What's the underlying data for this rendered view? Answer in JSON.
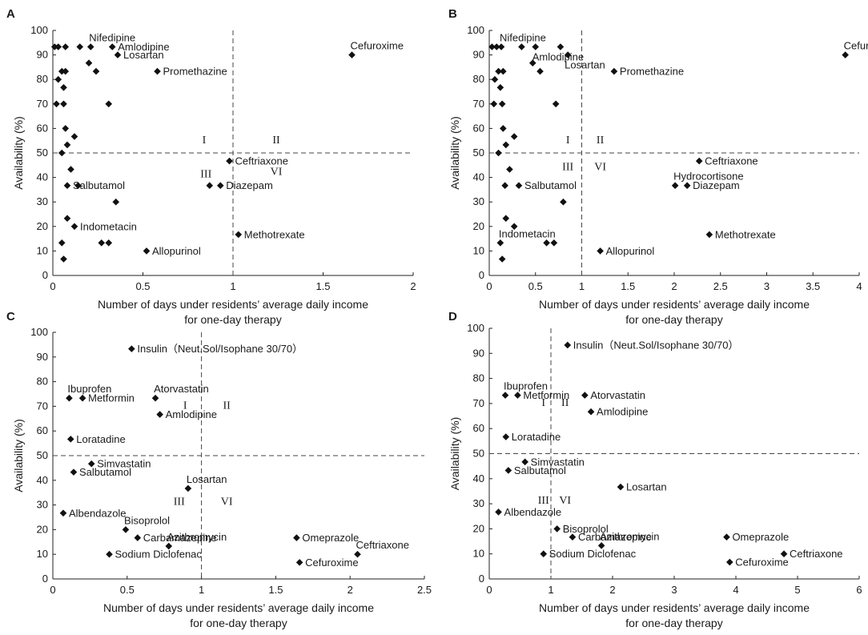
{
  "figure": {
    "y_axis_label": "Availability (%)",
    "x_axis_label_line1": "Number of days under residents’    average daily income",
    "x_axis_label_line2": "for one-day therapy",
    "marker_color": "#111111"
  },
  "chart_data": [
    {
      "panel": "A",
      "type": "scatter",
      "xlabel": "Number of days under residents’ average daily income for one-day therapy",
      "ylabel": "Availability (%)",
      "xlim": [
        0,
        2
      ],
      "ylim": [
        0,
        100
      ],
      "xticks": [
        "0",
        "0.5",
        "1",
        "1.5",
        "2"
      ],
      "yticks": [
        "0",
        "10",
        "20",
        "30",
        "40",
        "50",
        "60",
        "70",
        "80",
        "90",
        "100"
      ],
      "thresholds": {
        "x": 1,
        "y": 50
      },
      "quadrants": [
        {
          "label": "I",
          "x": 0.84,
          "y": 54
        },
        {
          "label": "II",
          "x": 1.24,
          "y": 54
        },
        {
          "label": "III",
          "x": 0.85,
          "y": 40
        },
        {
          "label": "VI",
          "x": 1.24,
          "y": 41
        }
      ],
      "points": [
        {
          "x": 0.01,
          "y": 93.3
        },
        {
          "x": 0.03,
          "y": 93.3
        },
        {
          "x": 0.07,
          "y": 93.3
        },
        {
          "x": 0.15,
          "y": 93.3
        },
        {
          "x": 0.21,
          "y": 93.3,
          "label": "Nifedipine",
          "pos": "above"
        },
        {
          "x": 0.33,
          "y": 93.3,
          "label": "Amlodipine",
          "pos": "right"
        },
        {
          "x": 0.36,
          "y": 90,
          "label": "Losartan",
          "pos": "right"
        },
        {
          "x": 1.66,
          "y": 90,
          "label": "Cefuroxime",
          "pos": "above"
        },
        {
          "x": 0.05,
          "y": 83.3
        },
        {
          "x": 0.07,
          "y": 83.3
        },
        {
          "x": 0.2,
          "y": 86.7
        },
        {
          "x": 0.24,
          "y": 83.3
        },
        {
          "x": 0.58,
          "y": 83.3,
          "label": "Promethazine",
          "pos": "right"
        },
        {
          "x": 0.03,
          "y": 80
        },
        {
          "x": 0.06,
          "y": 76.7
        },
        {
          "x": 0.02,
          "y": 70
        },
        {
          "x": 0.06,
          "y": 70
        },
        {
          "x": 0.31,
          "y": 70
        },
        {
          "x": 0.07,
          "y": 60
        },
        {
          "x": 0.12,
          "y": 56.7
        },
        {
          "x": 0.08,
          "y": 53.3
        },
        {
          "x": 0.05,
          "y": 50
        },
        {
          "x": 0.98,
          "y": 46.7,
          "label": "Ceftriaxone",
          "pos": "right"
        },
        {
          "x": 0.1,
          "y": 43.3
        },
        {
          "x": 0.08,
          "y": 36.7,
          "label": "Salbutamol",
          "pos": "right"
        },
        {
          "x": 0.14,
          "y": 36.7
        },
        {
          "x": 0.87,
          "y": 36.7
        },
        {
          "x": 0.93,
          "y": 36.7,
          "label": "Diazepam",
          "pos": "right"
        },
        {
          "x": 0.35,
          "y": 30
        },
        {
          "x": 0.08,
          "y": 23.3
        },
        {
          "x": 0.12,
          "y": 20,
          "label": "Indometacin",
          "pos": "right"
        },
        {
          "x": 1.03,
          "y": 16.7,
          "label": "Methotrexate",
          "pos": "right"
        },
        {
          "x": 0.05,
          "y": 13.3
        },
        {
          "x": 0.27,
          "y": 13.3
        },
        {
          "x": 0.31,
          "y": 13.3
        },
        {
          "x": 0.52,
          "y": 10,
          "label": "Allopurinol",
          "pos": "right"
        },
        {
          "x": 0.06,
          "y": 6.7
        }
      ]
    },
    {
      "panel": "B",
      "type": "scatter",
      "xlabel": "Number of days under residents’ average daily income for one-day therapy",
      "ylabel": "Availability (%)",
      "xlim": [
        0,
        4
      ],
      "ylim": [
        0,
        100
      ],
      "xticks": [
        "0",
        "0.5",
        "1",
        "1.5",
        "2",
        "2.5",
        "3",
        "3.5",
        "4"
      ],
      "yticks": [
        "0",
        "10",
        "20",
        "30",
        "40",
        "50",
        "60",
        "70",
        "80",
        "90",
        "100"
      ],
      "thresholds": {
        "x": 1,
        "y": 50
      },
      "quadrants": [
        {
          "label": "I",
          "x": 0.85,
          "y": 54
        },
        {
          "label": "II",
          "x": 1.2,
          "y": 54
        },
        {
          "label": "III",
          "x": 0.85,
          "y": 43
        },
        {
          "label": "VI",
          "x": 1.2,
          "y": 43
        }
      ],
      "points": [
        {
          "x": 0.03,
          "y": 93.3
        },
        {
          "x": 0.08,
          "y": 93.3
        },
        {
          "x": 0.13,
          "y": 93.3,
          "label": "Nifedipine",
          "pos": "above"
        },
        {
          "x": 0.35,
          "y": 93.3
        },
        {
          "x": 0.5,
          "y": 93.3,
          "label": "Amlodipine",
          "pos": "below"
        },
        {
          "x": 0.77,
          "y": 93.3
        },
        {
          "x": 0.85,
          "y": 90,
          "label": "Losartan",
          "pos": "below"
        },
        {
          "x": 3.85,
          "y": 90,
          "label": "Cefuroxime",
          "pos": "above"
        },
        {
          "x": 0.1,
          "y": 83.3
        },
        {
          "x": 0.15,
          "y": 83.3
        },
        {
          "x": 0.47,
          "y": 86.7
        },
        {
          "x": 0.55,
          "y": 83.3
        },
        {
          "x": 1.35,
          "y": 83.3,
          "label": "Promethazine",
          "pos": "right"
        },
        {
          "x": 0.06,
          "y": 80
        },
        {
          "x": 0.12,
          "y": 76.7
        },
        {
          "x": 0.05,
          "y": 70
        },
        {
          "x": 0.14,
          "y": 70
        },
        {
          "x": 0.72,
          "y": 70
        },
        {
          "x": 0.15,
          "y": 60
        },
        {
          "x": 0.27,
          "y": 56.7
        },
        {
          "x": 0.18,
          "y": 53.3
        },
        {
          "x": 0.1,
          "y": 50
        },
        {
          "x": 2.27,
          "y": 46.7,
          "label": "Ceftriaxone",
          "pos": "right"
        },
        {
          "x": 0.22,
          "y": 43.3
        },
        {
          "x": 0.17,
          "y": 36.7
        },
        {
          "x": 0.32,
          "y": 36.7,
          "label": "Salbutamol",
          "pos": "right"
        },
        {
          "x": 2.01,
          "y": 36.7,
          "label": "Hydrocortisone",
          "pos": "above"
        },
        {
          "x": 2.14,
          "y": 36.7,
          "label": "Diazepam",
          "pos": "right"
        },
        {
          "x": 0.8,
          "y": 30
        },
        {
          "x": 0.18,
          "y": 23.3
        },
        {
          "x": 0.27,
          "y": 20
        },
        {
          "x": 0.12,
          "y": 13.3,
          "label": "Indometacin",
          "pos": "above"
        },
        {
          "x": 2.38,
          "y": 16.7,
          "label": "Methotrexate",
          "pos": "right"
        },
        {
          "x": 0.62,
          "y": 13.3
        },
        {
          "x": 0.7,
          "y": 13.3
        },
        {
          "x": 1.2,
          "y": 10,
          "label": "Allopurinol",
          "pos": "right"
        },
        {
          "x": 0.14,
          "y": 6.7
        }
      ]
    },
    {
      "panel": "C",
      "type": "scatter",
      "xlabel": "Number of days under residents’ average daily income for one-day therapy",
      "ylabel": "Availability (%)",
      "xlim": [
        0,
        2.5
      ],
      "ylim": [
        0,
        100
      ],
      "xticks": [
        "0",
        "0.5",
        "1",
        "1.5",
        "2",
        "2.5"
      ],
      "yticks": [
        "0",
        "10",
        "20",
        "30",
        "40",
        "50",
        "60",
        "70",
        "80",
        "90",
        "100"
      ],
      "thresholds": {
        "x": 1,
        "y": 50
      },
      "quadrants": [
        {
          "label": "I",
          "x": 0.89,
          "y": 69
        },
        {
          "label": "II",
          "x": 1.17,
          "y": 69
        },
        {
          "label": "III",
          "x": 0.85,
          "y": 30
        },
        {
          "label": "VI",
          "x": 1.17,
          "y": 30
        }
      ],
      "points": [
        {
          "x": 0.53,
          "y": 93.3,
          "label": "Insulin（Neut.Sol/Isophane 30/70）",
          "pos": "right"
        },
        {
          "x": 0.11,
          "y": 73.3,
          "label": "Ibuprofen",
          "pos": "above"
        },
        {
          "x": 0.2,
          "y": 73.3,
          "label": "Metformin",
          "pos": "right"
        },
        {
          "x": 0.69,
          "y": 73.3,
          "label": "Atorvastatin",
          "pos": "above"
        },
        {
          "x": 0.72,
          "y": 66.7,
          "label": "Amlodipine",
          "pos": "right"
        },
        {
          "x": 0.12,
          "y": 56.7,
          "label": "Loratadine",
          "pos": "right"
        },
        {
          "x": 0.26,
          "y": 46.7,
          "label": "Simvastatin",
          "pos": "right"
        },
        {
          "x": 0.14,
          "y": 43.3,
          "label": "Salbutamol",
          "pos": "right"
        },
        {
          "x": 0.91,
          "y": 36.7,
          "label": "Losartan",
          "pos": "above"
        },
        {
          "x": 0.07,
          "y": 26.7,
          "label": "Albendazole",
          "pos": "right"
        },
        {
          "x": 0.49,
          "y": 20,
          "label": "Bisoprolol",
          "pos": "above"
        },
        {
          "x": 0.57,
          "y": 16.7,
          "label": "Carbamazepine",
          "pos": "right"
        },
        {
          "x": 0.78,
          "y": 13.3,
          "label": "Azithromycin",
          "pos": "above"
        },
        {
          "x": 0.38,
          "y": 10,
          "label": "Sodium Diclofenac",
          "pos": "right"
        },
        {
          "x": 1.64,
          "y": 16.7,
          "label": "Omeprazole",
          "pos": "right"
        },
        {
          "x": 2.05,
          "y": 10,
          "label": "Ceftriaxone",
          "pos": "above"
        },
        {
          "x": 1.66,
          "y": 6.7,
          "label": "Cefuroxime",
          "pos": "right"
        }
      ]
    },
    {
      "panel": "D",
      "type": "scatter",
      "xlabel": "Number of days under residents’ average daily income for one-day therapy",
      "ylabel": "Availability (%)",
      "xlim": [
        0,
        6
      ],
      "ylim": [
        0,
        100
      ],
      "xticks": [
        "0",
        "1",
        "2",
        "3",
        "4",
        "5",
        "6"
      ],
      "yticks": [
        "0",
        "10",
        "20",
        "30",
        "40",
        "50",
        "60",
        "70",
        "80",
        "90",
        "100"
      ],
      "thresholds": {
        "x": 1,
        "y": 50
      },
      "quadrants": [
        {
          "label": "I",
          "x": 0.88,
          "y": 69
        },
        {
          "label": "II",
          "x": 1.23,
          "y": 69
        },
        {
          "label": "III",
          "x": 0.88,
          "y": 30
        },
        {
          "label": "VI",
          "x": 1.23,
          "y": 30
        }
      ],
      "points": [
        {
          "x": 1.27,
          "y": 93.3,
          "label": "Insulin（Neut.Sol/Isophane 30/70）",
          "pos": "right"
        },
        {
          "x": 0.26,
          "y": 73.3,
          "label": "Ibuprofen",
          "pos": "above"
        },
        {
          "x": 0.46,
          "y": 73.3,
          "label": "Metformin",
          "pos": "right"
        },
        {
          "x": 1.55,
          "y": 73.3,
          "label": "Atorvastatin",
          "pos": "right"
        },
        {
          "x": 1.65,
          "y": 66.7,
          "label": "Amlodipine",
          "pos": "right"
        },
        {
          "x": 0.27,
          "y": 56.7,
          "label": "Loratadine",
          "pos": "right"
        },
        {
          "x": 0.58,
          "y": 46.7,
          "label": "Simvastatin",
          "pos": "right"
        },
        {
          "x": 0.31,
          "y": 43.3,
          "label": "Salbutamol",
          "pos": "right"
        },
        {
          "x": 2.13,
          "y": 36.7,
          "label": "Losartan",
          "pos": "right"
        },
        {
          "x": 0.15,
          "y": 26.7,
          "label": "Albendazole",
          "pos": "right"
        },
        {
          "x": 1.1,
          "y": 20,
          "label": "Bisoprolol",
          "pos": "right"
        },
        {
          "x": 1.35,
          "y": 16.7,
          "label": "Carbamazepine",
          "pos": "right"
        },
        {
          "x": 1.82,
          "y": 13.3,
          "label": "Azithromycin",
          "pos": "above"
        },
        {
          "x": 0.88,
          "y": 10,
          "label": "Sodium Diclofenac",
          "pos": "right"
        },
        {
          "x": 3.85,
          "y": 16.7,
          "label": "Omeprazole",
          "pos": "right"
        },
        {
          "x": 4.78,
          "y": 10,
          "label": "Ceftriaxone",
          "pos": "right"
        },
        {
          "x": 3.9,
          "y": 6.7,
          "label": "Cefuroxime",
          "pos": "right"
        }
      ]
    }
  ]
}
